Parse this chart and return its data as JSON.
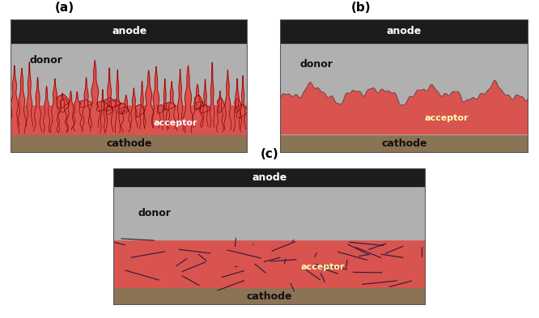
{
  "fig_width": 6.66,
  "fig_height": 3.93,
  "dpi": 100,
  "bg_color": "#ffffff",
  "anode_color": "#1c1c1c",
  "donor_color": "#b0b0b0",
  "acceptor_color": "#d9534f",
  "acceptor_dark_color": "#c0392b",
  "cathode_color": "#8B7355",
  "crack_color": "#2a1a3a",
  "label_white": "#ffffff",
  "label_black": "#111111",
  "label_yellow": "#ffffaa",
  "panel_labels": [
    "(a)",
    "(b)",
    "(c)"
  ],
  "border_color": "#555555"
}
